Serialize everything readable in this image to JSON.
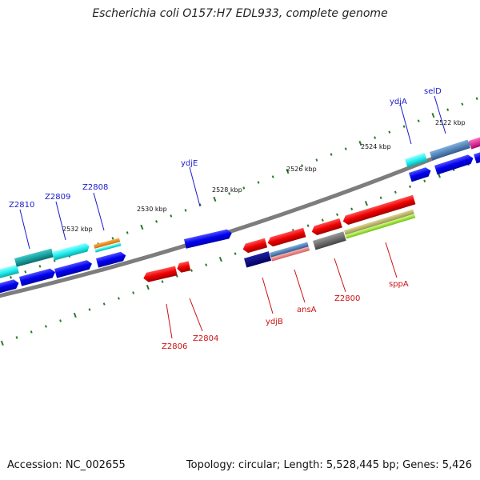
{
  "title": "Escherichia coli O157:H7 EDL933, complete genome",
  "accession_text": "Accession: NC_002655",
  "info_text": "Topology: circular; Length: 5,528,445 bp; Genes: 5,426",
  "scale_labels": [
    "2522 kbp",
    "2524 kbp",
    "2526 kbp",
    "2528 kbp",
    "2530 kbp",
    "2532 kbp"
  ],
  "forward_gene_labels": [
    "selD",
    "ydjA",
    "ydjE",
    "Z2808",
    "Z2809",
    "Z2810"
  ],
  "reverse_gene_labels": [
    "sppA",
    "Z2800",
    "ansA",
    "ydjB",
    "Z2804",
    "Z2806"
  ],
  "colors": {
    "forward_label": "#1a1acc",
    "reverse_label": "#cc1111",
    "tick": "#2a7a2a",
    "backbone": "#808080",
    "gene_blue": "#0000ee",
    "gene_red": "#ee0000",
    "gene_cyan": "#22eeee",
    "gene_teal": "#1aa0a0",
    "gene_orange": "#ff8c00",
    "gene_navy": "#00007a",
    "gene_steel": "#4a80b8",
    "gene_salmon": "#f08080",
    "gene_gray": "#6a6a6a",
    "gene_khaki": "#bdb76b",
    "gene_lime": "#a0f030",
    "gene_magenta": "#ee1a9a"
  }
}
